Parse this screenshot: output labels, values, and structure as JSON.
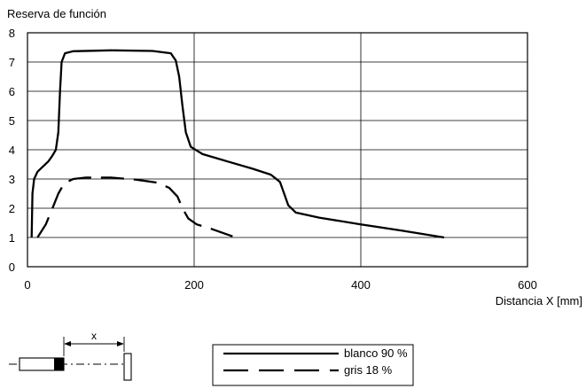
{
  "chart_data": {
    "type": "line",
    "ylabel": "Reserva de función",
    "xlabel": "Distancia X [mm]",
    "xlim": [
      0,
      600
    ],
    "ylim": [
      0,
      8
    ],
    "x_ticks": [
      0,
      200,
      400,
      600
    ],
    "y_ticks": [
      0,
      1,
      2,
      3,
      4,
      5,
      6,
      7,
      8
    ],
    "grid": true,
    "legend_position": "bottom-center",
    "series": [
      {
        "name": "blanco 90 %",
        "style": "solid",
        "color": "#000000",
        "points": [
          [
            5,
            1
          ],
          [
            6,
            2.5
          ],
          [
            8,
            3.0
          ],
          [
            12,
            3.25
          ],
          [
            25,
            3.6
          ],
          [
            30,
            3.8
          ],
          [
            34,
            4.0
          ],
          [
            37,
            4.6
          ],
          [
            39,
            6.0
          ],
          [
            41,
            7.0
          ],
          [
            45,
            7.3
          ],
          [
            55,
            7.37
          ],
          [
            100,
            7.4
          ],
          [
            150,
            7.38
          ],
          [
            172,
            7.3
          ],
          [
            178,
            7.05
          ],
          [
            182,
            6.5
          ],
          [
            186,
            5.5
          ],
          [
            190,
            4.6
          ],
          [
            196,
            4.1
          ],
          [
            210,
            3.85
          ],
          [
            240,
            3.6
          ],
          [
            270,
            3.35
          ],
          [
            292,
            3.15
          ],
          [
            303,
            2.9
          ],
          [
            308,
            2.5
          ],
          [
            313,
            2.1
          ],
          [
            322,
            1.85
          ],
          [
            350,
            1.68
          ],
          [
            400,
            1.45
          ],
          [
            450,
            1.23
          ],
          [
            500,
            1.0
          ]
        ]
      },
      {
        "name": "gris 18 %",
        "style": "dashed",
        "color": "#000000",
        "points": [
          [
            12,
            1
          ],
          [
            22,
            1.45
          ],
          [
            30,
            2.0
          ],
          [
            37,
            2.5
          ],
          [
            44,
            2.85
          ],
          [
            55,
            3.0
          ],
          [
            70,
            3.05
          ],
          [
            100,
            3.05
          ],
          [
            130,
            2.98
          ],
          [
            155,
            2.88
          ],
          [
            170,
            2.7
          ],
          [
            180,
            2.4
          ],
          [
            186,
            2.0
          ],
          [
            193,
            1.65
          ],
          [
            203,
            1.45
          ],
          [
            220,
            1.3
          ],
          [
            235,
            1.15
          ],
          [
            250,
            1.0
          ]
        ]
      }
    ]
  },
  "diagram": {
    "distance_label": "x"
  }
}
